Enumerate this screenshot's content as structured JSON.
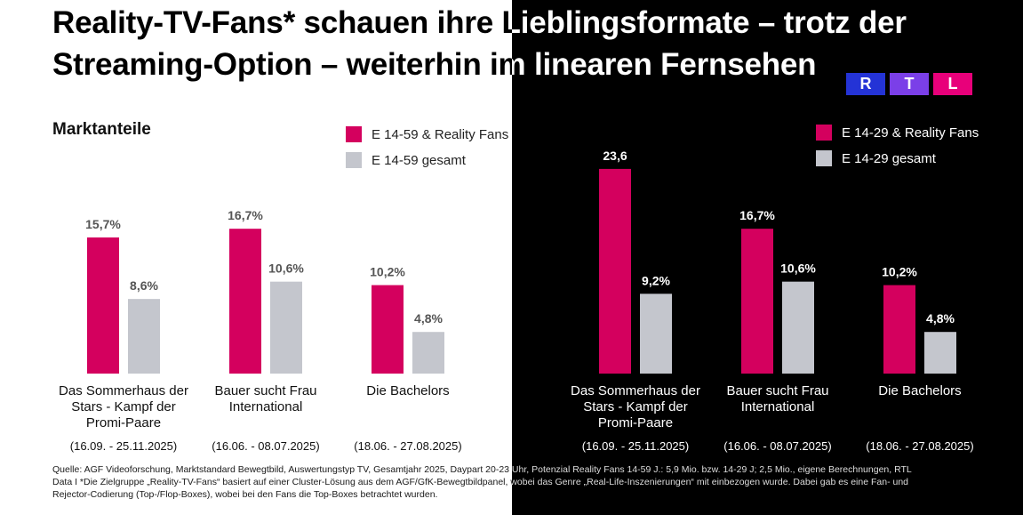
{
  "header": {
    "title_line1": "Reality-TV-Fans* schauen ihre Lieblingsformate – trotz der",
    "title_line2": "Streaming-Option – weiterhin im linearen Fernsehen",
    "logo": [
      "R",
      "T",
      "L"
    ]
  },
  "colors": {
    "fans": "#d4005e",
    "gesamt": "#c4c6cd",
    "logo_r": "#2433d6",
    "logo_t": "#7b3fe8",
    "logo_l": "#e8007a"
  },
  "subtitle": "Marktanteile",
  "chart_data": [
    {
      "type": "bar",
      "title": "",
      "categories": [
        "Das Sommerhaus der Stars - Kampf der Promi-Paare",
        "Bauer sucht Frau International",
        "Die Bachelors"
      ],
      "category_lines": [
        [
          "Das Sommerhaus der",
          "Stars - Kampf der",
          "Promi-Paare"
        ],
        [
          "Bauer sucht Frau",
          "International"
        ],
        [
          "Die Bachelors"
        ]
      ],
      "dates": [
        "(16.09. - 25.11.2025)",
        "(16.06. - 08.07.2025)",
        "(18.06. - 27.08.2025)"
      ],
      "series": [
        {
          "name": "E 14-59 & Reality Fans",
          "values": [
            15.7,
            16.7,
            10.2
          ],
          "labels": [
            "15,7%",
            "16,7%",
            "10,2%"
          ]
        },
        {
          "name": "E 14-59 gesamt",
          "values": [
            8.6,
            10.6,
            4.8
          ],
          "labels": [
            "8,6%",
            "10,6%",
            "4,8%"
          ]
        }
      ],
      "ylim": [
        0,
        25
      ],
      "legend": "top-right",
      "grid": false
    },
    {
      "type": "bar",
      "title": "",
      "categories": [
        "Das Sommerhaus der Stars - Kampf der Promi-Paare",
        "Bauer sucht Frau International",
        "Die Bachelors"
      ],
      "category_lines": [
        [
          "Das Sommerhaus der",
          "Stars - Kampf der",
          "Promi-Paare"
        ],
        [
          "Bauer sucht Frau",
          "International"
        ],
        [
          "Die Bachelors"
        ]
      ],
      "dates": [
        "(16.09. - 25.11.2025)",
        "(16.06. - 08.07.2025)",
        "(18.06. - 27.08.2025)"
      ],
      "series": [
        {
          "name": "E 14-29 & Reality Fans",
          "values": [
            23.6,
            16.7,
            10.2
          ],
          "labels": [
            "23,6",
            "16,7%",
            "10,2%"
          ]
        },
        {
          "name": "E 14-29 gesamt",
          "values": [
            9.2,
            10.6,
            4.8
          ],
          "labels": [
            "9,2%",
            "10,6%",
            "4,8%"
          ]
        }
      ],
      "ylim": [
        0,
        25
      ],
      "legend": "top-right",
      "grid": false
    }
  ],
  "source": {
    "line1": "Quelle: AGF Videoforschung, Marktstandard Bewegtbild, Auswertungstyp TV, Gesamtjahr 2025, Daypart 20-23 Uhr, Potenzial Reality Fans 14-59 J.: 5,9 Mio. bzw. 14-29 J; 2,5 Mio., eigene Berechnungen, RTL",
    "line2": "Data I *Die Zielgruppe „Reality-TV-Fans“ basiert auf einer Cluster-Lösung aus dem AGF/GfK-Bewegtbildpanel, wobei das Genre „Real-Life-Inszenierungen“ mit einbezogen wurde. Dabei gab es eine Fan- und",
    "line3": "Rejector-Codierung (Top-/Flop-Boxes), wobei bei den Fans die Top-Boxes betrachtet wurden."
  }
}
